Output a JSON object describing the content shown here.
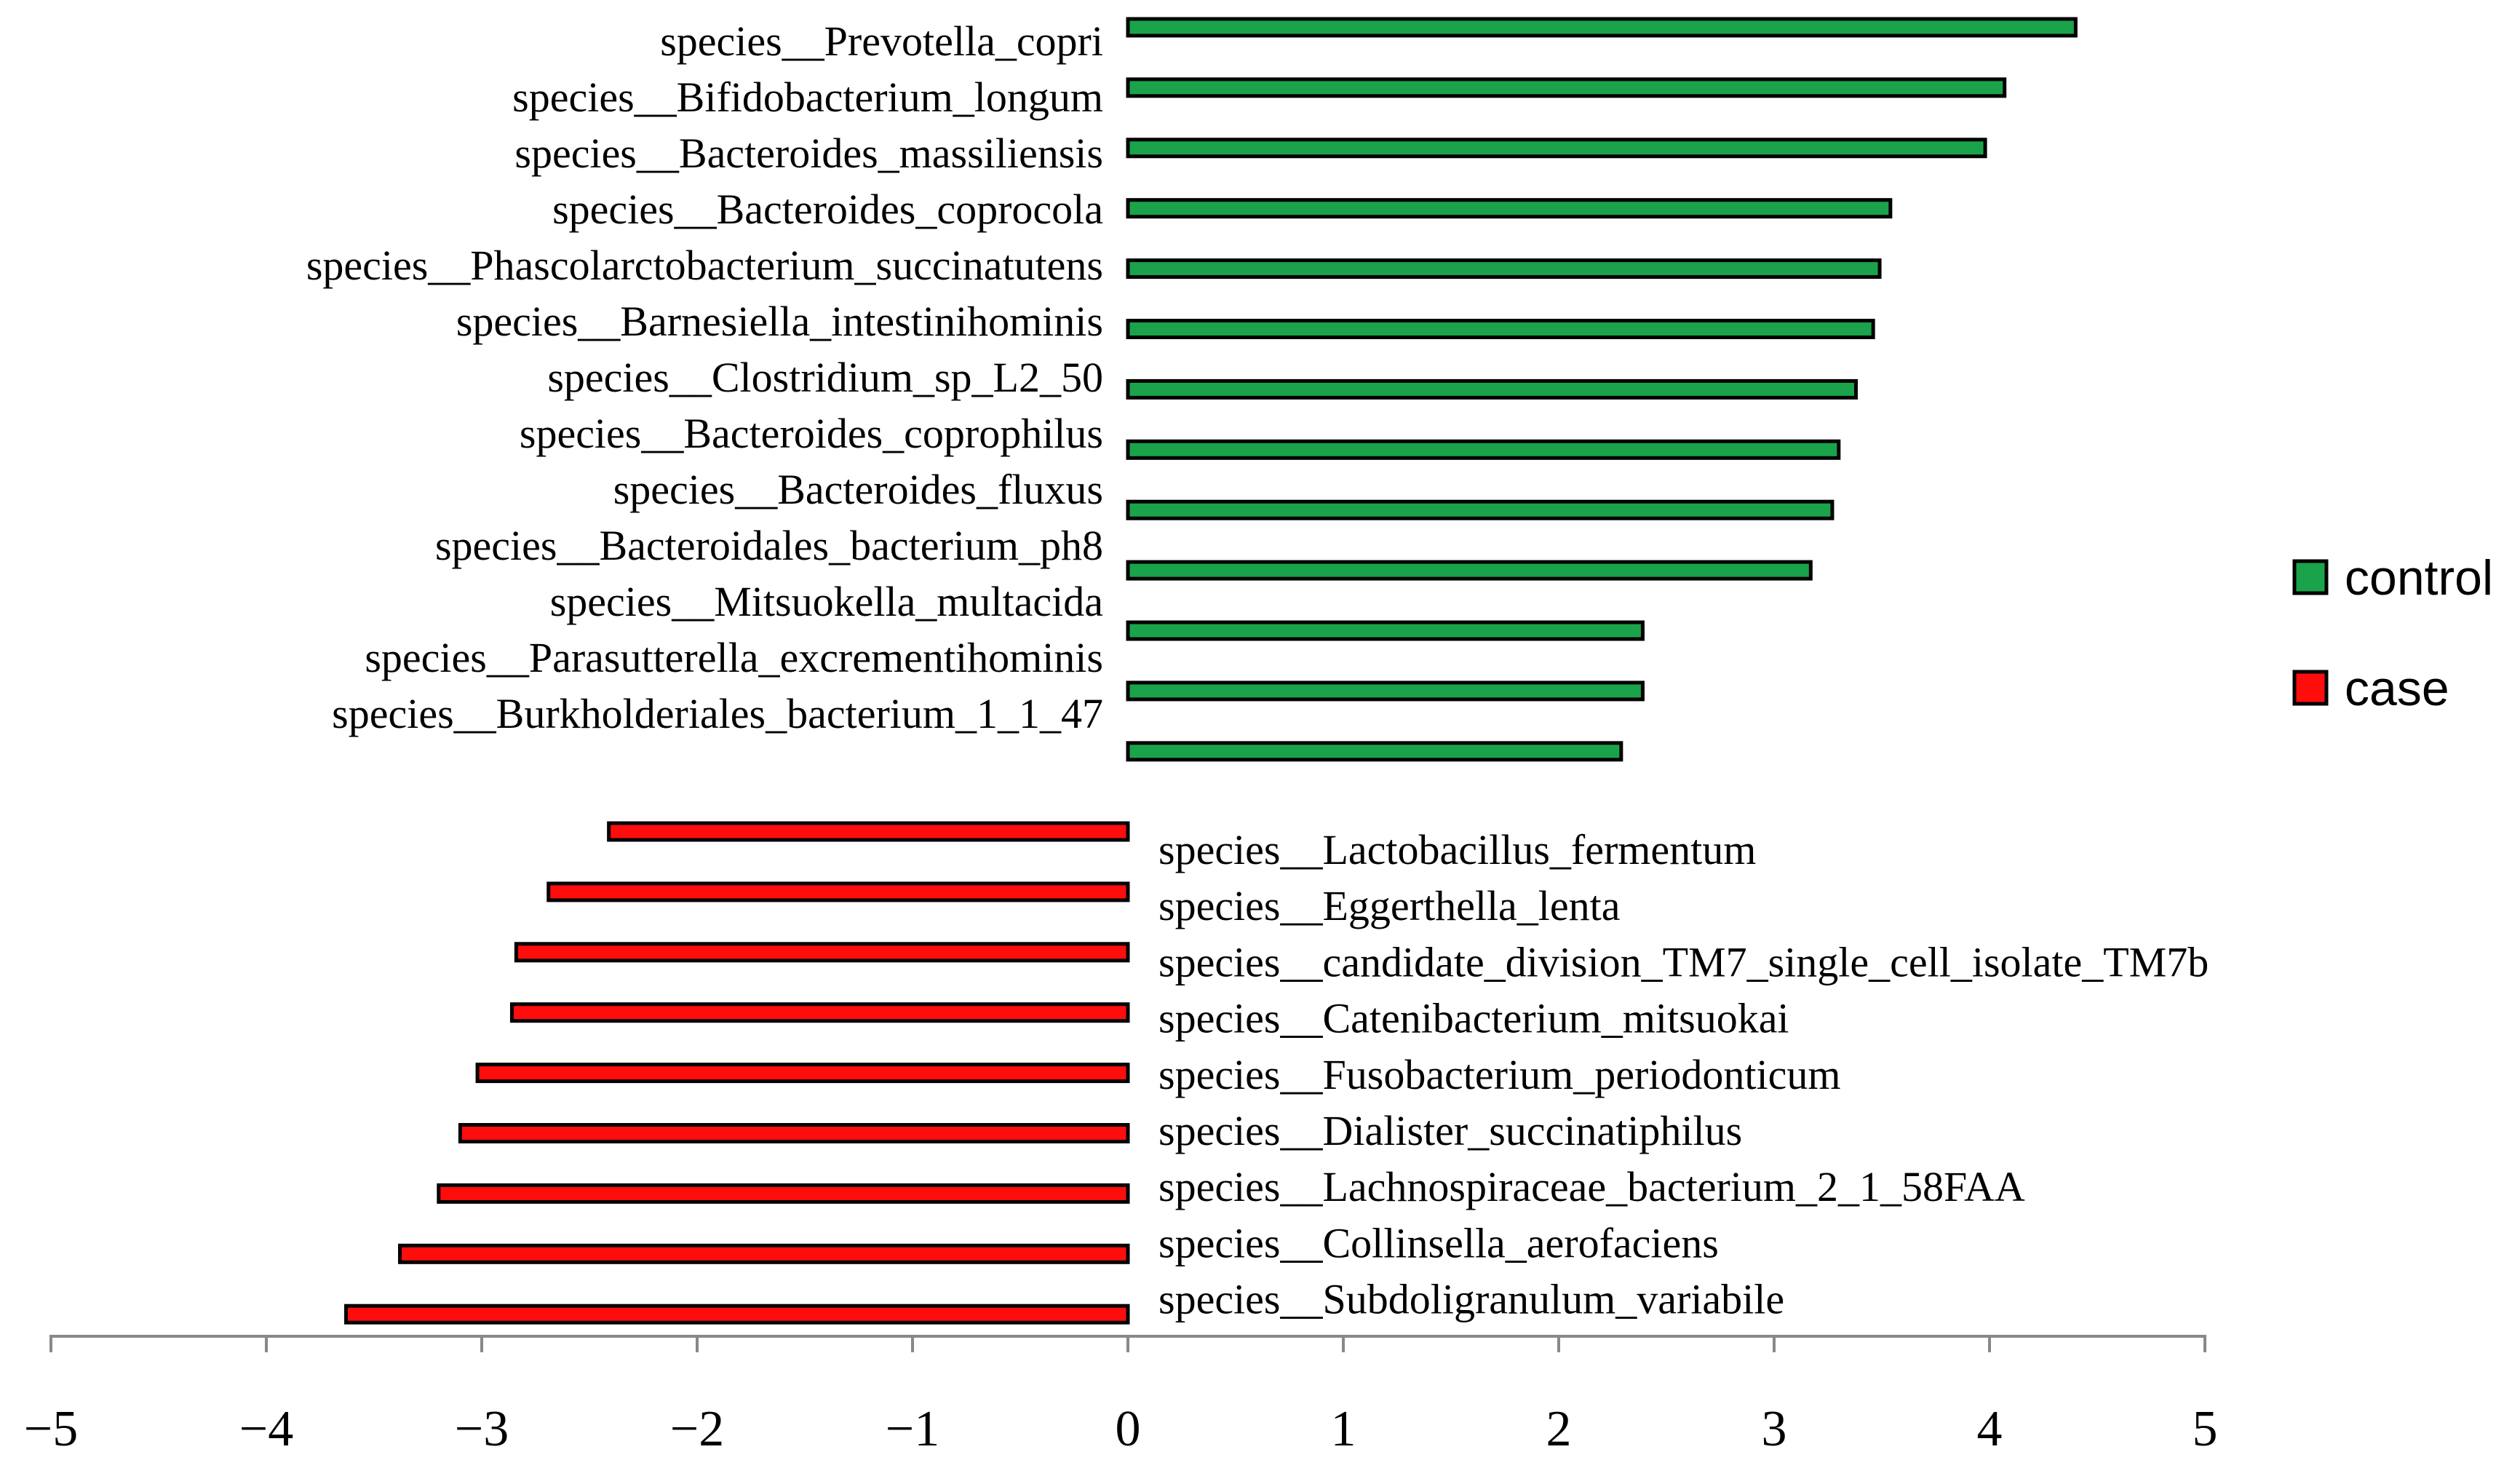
{
  "chart_data": {
    "type": "bar",
    "orientation": "horizontal",
    "title": "",
    "xlabel": "",
    "ylabel": "",
    "xlim": [
      -5,
      5
    ],
    "xticks": [
      -5,
      -4,
      -3,
      -2,
      -1,
      0,
      1,
      2,
      3,
      4,
      5
    ],
    "xtick_labels": [
      "−5",
      "−4",
      "−3",
      "−2",
      "−1",
      "0",
      "1",
      "2",
      "3",
      "4",
      "5"
    ],
    "grid": false,
    "legend": {
      "position": "right",
      "entries": [
        {
          "name": "control",
          "color": "#1aa34a"
        },
        {
          "name": "case",
          "color": "#ff0d0d"
        }
      ]
    },
    "series": [
      {
        "name": "control",
        "color": "#1aa34a",
        "bar_values": [
          4.4,
          4.07,
          3.98,
          3.54,
          3.49,
          3.46,
          3.38,
          3.3,
          3.27,
          3.17,
          2.39,
          2.39,
          2.29
        ],
        "labels": [
          "species__Prevotella_copri",
          "species__Bifidobacterium_longum",
          "species__Bacteroides_massiliensis",
          "species__Bacteroides_coprocola",
          "species__Phascolarctobacterium_succinatutens",
          "species__Barnesiella_intestinihominis",
          "species__Clostridium_sp_L2_50",
          "species__Bacteroides_coprophilus",
          "species__Bacteroides_fluxus",
          "species__Bacteroidales_bacterium_ph8",
          "species__Mitsuokella_multacida",
          "species__Parasutterella_excrementihominis",
          "species__Burkholderiales_bacterium_1_1_47"
        ]
      },
      {
        "name": "case",
        "color": "#ff0d0d",
        "bar_values": [
          -2.41,
          -2.69,
          -2.84,
          -2.86,
          -3.02,
          -3.1,
          -3.2,
          -3.38,
          -3.63
        ],
        "labels": [
          "species__Lactobacillus_fermentum",
          "species__Eggerthella_lenta",
          "species__candidate_division_TM7_single_cell_isolate_TM7b",
          "species__Catenibacterium_mitsuokai",
          "species__Fusobacterium_periodonticum",
          "species__Dialister_succinatiphilus",
          "species__Lachnospiraceae_bacterium_2_1_58FAA",
          "species__Collinsella_aerofaciens",
          "species__Subdoligranulum_variabile"
        ]
      }
    ]
  }
}
